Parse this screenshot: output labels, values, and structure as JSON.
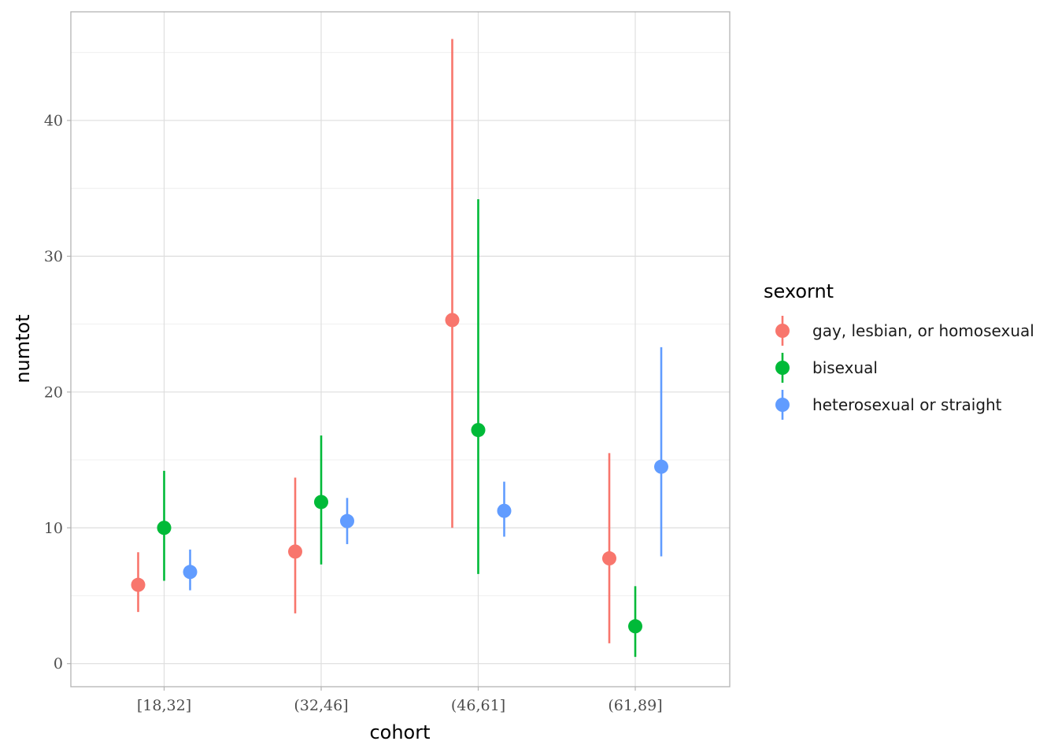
{
  "chart_data": {
    "type": "scatter",
    "geom": "pointrange",
    "xlabel": "cohort",
    "ylabel": "numtot",
    "categories": [
      "[18,32]",
      "(32,46]",
      "(46,61]",
      "(61,89]"
    ],
    "ylim": [
      -1.7,
      48
    ],
    "yticks": [
      0,
      10,
      20,
      30,
      40
    ],
    "grid": true,
    "legend": {
      "title": "sexornt",
      "position": "right"
    },
    "series": [
      {
        "name": "gay, lesbian, or homosexual",
        "color": "#F8766D",
        "points": [
          {
            "x": "[18,32]",
            "y": 5.8,
            "ymin": 3.8,
            "ymax": 8.2
          },
          {
            "x": "(32,46]",
            "y": 8.25,
            "ymin": 3.7,
            "ymax": 13.7
          },
          {
            "x": "(46,61]",
            "y": 25.3,
            "ymin": 10.0,
            "ymax": 46.0
          },
          {
            "x": "(61,89]",
            "y": 7.75,
            "ymin": 1.5,
            "ymax": 15.5
          }
        ]
      },
      {
        "name": "bisexual",
        "color": "#00BA38",
        "points": [
          {
            "x": "[18,32]",
            "y": 10.0,
            "ymin": 6.1,
            "ymax": 14.2
          },
          {
            "x": "(32,46]",
            "y": 11.9,
            "ymin": 7.3,
            "ymax": 16.8
          },
          {
            "x": "(46,61]",
            "y": 17.2,
            "ymin": 6.6,
            "ymax": 34.2
          },
          {
            "x": "(61,89]",
            "y": 2.75,
            "ymin": 0.5,
            "ymax": 5.7
          }
        ]
      },
      {
        "name": "heterosexual or straight",
        "color": "#619CFF",
        "points": [
          {
            "x": "[18,32]",
            "y": 6.75,
            "ymin": 5.4,
            "ymax": 8.4
          },
          {
            "x": "(32,46]",
            "y": 10.5,
            "ymin": 8.8,
            "ymax": 12.2
          },
          {
            "x": "(46,61]",
            "y": 11.25,
            "ymin": 9.35,
            "ymax": 13.4
          },
          {
            "x": "(61,89]",
            "y": 14.5,
            "ymin": 7.9,
            "ymax": 23.3
          }
        ]
      }
    ]
  }
}
